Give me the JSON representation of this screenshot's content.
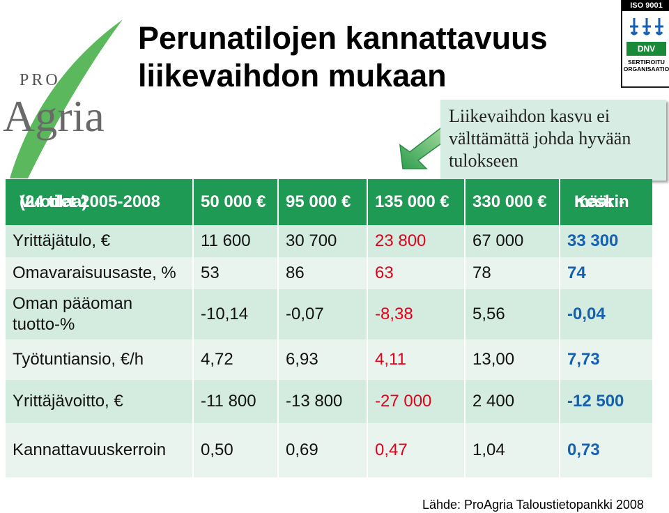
{
  "logo": {
    "line1": "PRO",
    "line2": "Agria"
  },
  "title": {
    "line1": "Perunatilojen kannattavuus",
    "line2": "liikevaihdon mukaan"
  },
  "certification": {
    "top": "ISO 9001",
    "brand": "DNV",
    "line1": "SERTIFIOITU",
    "line2": "ORGANISAATIO"
  },
  "callout": {
    "line1": "Liikevaihdon kasvu ei",
    "line2": "välttämättä johda hyvään",
    "line3": "tulokseen"
  },
  "table": {
    "header": {
      "label_line1": "Vuodet 2005-2008",
      "label_line2": "(24 tilaa)",
      "cols": [
        "50 000 €",
        "95 000 €",
        "135 000 €",
        "330 000 €"
      ],
      "avg_line1": "Keski-",
      "avg_line2": "määrin"
    },
    "rows": [
      {
        "label": "Yrittäjätulo, €",
        "values": [
          "11 600",
          "30 700",
          "23 800",
          "67 000",
          "33 300"
        ]
      },
      {
        "label": "Omavaraisuusaste, %",
        "values": [
          "53",
          "86",
          "63",
          "78",
          "74"
        ]
      },
      {
        "label": "Oman pääoman tuotto-%",
        "values": [
          "-10,14",
          "-0,07",
          "-8,38",
          "5,56",
          "-0,04"
        ]
      },
      {
        "label": "Työtuntiansio, €/h",
        "values": [
          "4,72",
          "6,93",
          "4,11",
          "13,00",
          "7,73"
        ]
      },
      {
        "label": "Yrittäjävoitto, €",
        "values": [
          "-11 800",
          "-13 800",
          "-27 000",
          "2 400",
          "-12 500"
        ]
      },
      {
        "label": "Kannattavuuskerroin",
        "values": [
          "0,50",
          "0,69",
          "0,47",
          "1,04",
          "0,73"
        ]
      }
    ]
  },
  "source": "Lähde: ProAgria Taloustietopankki 2008",
  "colors": {
    "header_green": "#1f9a55",
    "row_light": "#d4ebe0",
    "row_lighter": "#e9f4ee",
    "highlight_red": "#e4001b",
    "average_blue": "#1560b0",
    "callout_bg": "#d7ece3",
    "logo_green": "#5cb85c"
  }
}
